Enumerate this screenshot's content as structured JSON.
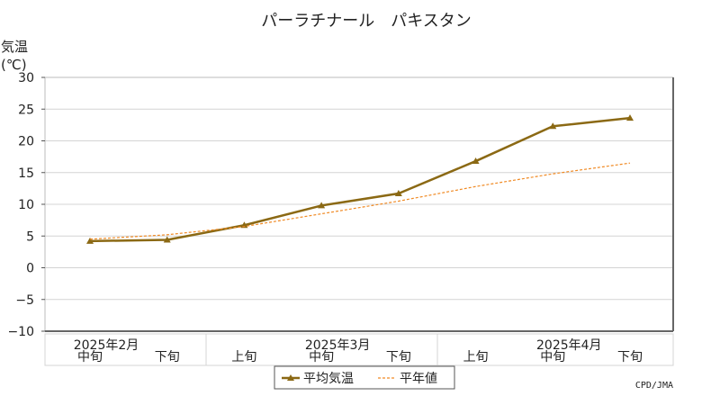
{
  "chart_data": {
    "type": "line",
    "title": "パーラチナール　パキスタン",
    "ylabel_line1": "気温",
    "ylabel_line2": "(℃)",
    "ylim": [
      -10,
      30
    ],
    "yticks": [
      -10,
      -5,
      0,
      5,
      10,
      15,
      20,
      25,
      30
    ],
    "ytick_labels": [
      "−10",
      "−5",
      "0",
      "5",
      "10",
      "15",
      "20",
      "25",
      "30"
    ],
    "categories": [
      "中旬",
      "下旬",
      "上旬",
      "中旬",
      "下旬",
      "上旬",
      "中旬",
      "下旬"
    ],
    "month_labels": [
      {
        "label": "2025年2月",
        "category_index": 0
      },
      {
        "label": "2025年3月",
        "category_index": 3
      },
      {
        "label": "2025年4月",
        "category_index": 6
      }
    ],
    "series": [
      {
        "name": "平均気温",
        "values": [
          4.2,
          4.4,
          6.7,
          9.8,
          11.7,
          16.8,
          22.3,
          23.6
        ],
        "color": "#8b6914",
        "style": "solid-triangle"
      },
      {
        "name": "平年値",
        "values": [
          4.5,
          5.2,
          6.5,
          8.5,
          10.5,
          12.8,
          14.8,
          16.5
        ],
        "color": "#f08a24",
        "style": "dotted"
      }
    ],
    "grid": true,
    "legend_position": "bottom-center",
    "credit": "CPD/JMA"
  }
}
